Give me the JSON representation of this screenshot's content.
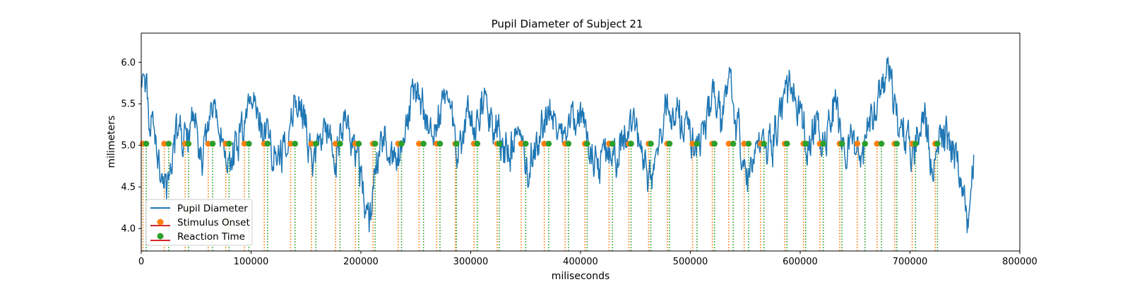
{
  "chart_data": {
    "type": "line",
    "title": "Pupil Diameter of Subject 21",
    "xlabel": "miliseconds",
    "ylabel": "milimeters",
    "xlim": [
      0,
      800000
    ],
    "ylim": [
      3.73,
      6.35
    ],
    "xticks": [
      0,
      100000,
      200000,
      300000,
      400000,
      500000,
      600000,
      700000,
      800000
    ],
    "xtick_labels": [
      "0",
      "100000",
      "200000",
      "300000",
      "400000",
      "500000",
      "600000",
      "700000",
      "800000"
    ],
    "yticks": [
      4.0,
      4.5,
      5.0,
      5.5,
      6.0
    ],
    "ytick_labels": [
      "4.0",
      "4.5",
      "5.0",
      "5.5",
      "6.0"
    ],
    "grid": false,
    "legend_position": "lower-left",
    "colors": {
      "pupil": "#1f77b4",
      "stimulus": "#ff7f0e",
      "reaction": "#2ca02c",
      "legend_line": "#d62728"
    },
    "series": [
      {
        "name": "Pupil Diameter",
        "kind": "line",
        "x": [
          0,
          8000,
          16000,
          24000,
          32000,
          40000,
          48000,
          56000,
          64000,
          72000,
          80000,
          88000,
          96000,
          104000,
          112000,
          120000,
          128000,
          136000,
          144000,
          152000,
          160000,
          168000,
          176000,
          184000,
          192000,
          200000,
          208000,
          216000,
          224000,
          232000,
          240000,
          248000,
          256000,
          264000,
          272000,
          280000,
          288000,
          296000,
          304000,
          312000,
          320000,
          328000,
          336000,
          344000,
          352000,
          360000,
          368000,
          376000,
          384000,
          392000,
          400000,
          408000,
          416000,
          424000,
          432000,
          440000,
          448000,
          456000,
          464000,
          472000,
          480000,
          488000,
          496000,
          504000,
          512000,
          520000,
          528000,
          536000,
          544000,
          552000,
          560000,
          568000,
          576000,
          584000,
          592000,
          600000,
          608000,
          616000,
          624000,
          632000,
          640000,
          648000,
          656000,
          664000,
          672000,
          680000,
          688000,
          696000,
          704000,
          712000,
          720000,
          728000,
          736000,
          744000,
          752000,
          758000
        ],
        "y": [
          5.95,
          5.3,
          4.9,
          4.4,
          5.2,
          5.0,
          5.3,
          4.8,
          5.4,
          5.2,
          4.6,
          5.1,
          5.3,
          5.4,
          5.2,
          5.0,
          4.8,
          5.3,
          5.5,
          5.0,
          4.9,
          5.3,
          4.7,
          5.4,
          5.1,
          4.6,
          4.1,
          4.9,
          5.0,
          4.8,
          5.1,
          5.6,
          5.5,
          5.1,
          5.4,
          5.7,
          4.8,
          5.3,
          5.2,
          5.6,
          5.3,
          5.0,
          4.9,
          5.2,
          4.7,
          5.0,
          5.3,
          5.4,
          5.1,
          5.2,
          5.4,
          5.0,
          4.7,
          5.0,
          4.8,
          5.1,
          5.2,
          5.0,
          4.6,
          5.0,
          5.5,
          5.4,
          5.2,
          5.0,
          5.1,
          5.6,
          5.2,
          5.8,
          5.1,
          4.5,
          5.0,
          4.9,
          5.1,
          5.4,
          5.8,
          5.3,
          5.0,
          5.2,
          5.0,
          5.5,
          4.9,
          5.0,
          4.8,
          5.3,
          5.6,
          5.9,
          5.3,
          5.1,
          4.9,
          5.5,
          4.6,
          5.1,
          5.0,
          4.8,
          4.1,
          4.8
        ]
      },
      {
        "name": "Stimulus Onset",
        "kind": "events",
        "value": 5.02,
        "x": [
          1500,
          21000,
          40000,
          61000,
          77000,
          94000,
          112000,
          136000,
          155000,
          177000,
          195000,
          211000,
          234000,
          253000,
          269000,
          286000,
          303000,
          324000,
          346000,
          367000,
          386000,
          404000,
          426000,
          444000,
          462000,
          479000,
          502000,
          520000,
          535000,
          549000,
          564000,
          586000,
          603000,
          618000,
          636000,
          652000,
          670000,
          686000,
          702000,
          723000
        ]
      },
      {
        "name": "Reaction Time",
        "kind": "events",
        "value": 5.02,
        "x": [
          4500,
          25000,
          43000,
          65000,
          80000,
          98000,
          115000,
          140000,
          159000,
          181000,
          198000,
          213000,
          237000,
          257000,
          272000,
          287000,
          306000,
          326000,
          350000,
          371000,
          389000,
          406000,
          429000,
          446000,
          464000,
          481000,
          506000,
          522000,
          539000,
          553000,
          567000,
          588000,
          605000,
          621000,
          638000,
          659000,
          674000,
          688000,
          705000,
          725000
        ]
      }
    ]
  }
}
